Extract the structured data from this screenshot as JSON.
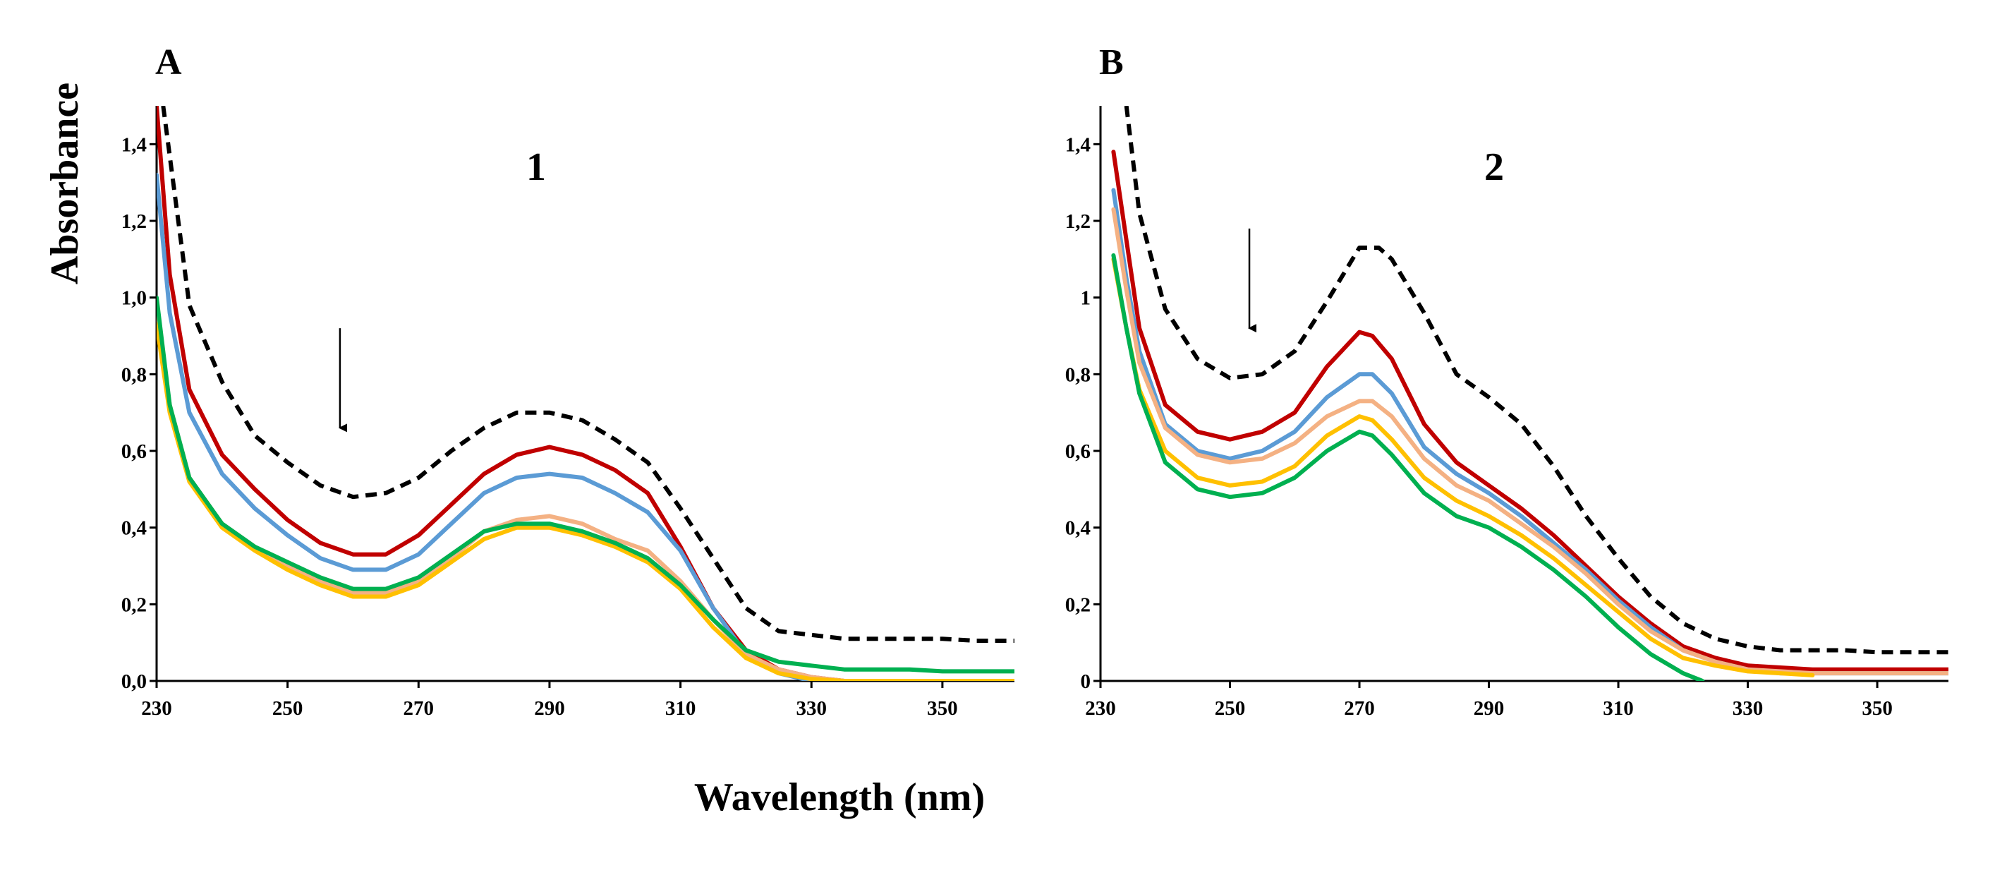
{
  "colors": {
    "dashed": "#000000",
    "red": "#c00000",
    "blue": "#5b9bd5",
    "salmon": "#f4b183",
    "yellow": "#ffc000",
    "green": "#00b050"
  },
  "xlabel": "Wavelength (nm)",
  "ylabel": "Absorbance",
  "chart_data": [
    {
      "type": "line",
      "panel": "A",
      "title": "1",
      "xlim": [
        230,
        361
      ],
      "ylim": [
        0,
        1.5
      ],
      "xticks": [
        230,
        250,
        270,
        290,
        310,
        330,
        350
      ],
      "yticks": [
        0,
        0.2,
        0.4,
        0.6,
        0.8,
        1.0,
        1.2,
        1.4
      ],
      "ytick_labels": [
        "0,0",
        "0,2",
        "0,4",
        "0,6",
        "0,8",
        "1,0",
        "1,2",
        "1,4"
      ],
      "arrow": {
        "x": 258,
        "from_y": 0.92,
        "to_y": 0.66
      },
      "series": [
        {
          "name": "dashed",
          "dash": true,
          "color_key": "dashed",
          "x": [
            231,
            235,
            240,
            245,
            250,
            255,
            260,
            265,
            270,
            275,
            280,
            285,
            290,
            295,
            300,
            305,
            310,
            315,
            320,
            325,
            330,
            335,
            340,
            345,
            350,
            355,
            361
          ],
          "y": [
            1.5,
            0.98,
            0.78,
            0.64,
            0.57,
            0.51,
            0.48,
            0.49,
            0.53,
            0.6,
            0.66,
            0.7,
            0.7,
            0.68,
            0.63,
            0.57,
            0.45,
            0.32,
            0.19,
            0.13,
            0.12,
            0.11,
            0.11,
            0.11,
            0.11,
            0.105,
            0.105
          ]
        },
        {
          "name": "red",
          "dash": false,
          "color_key": "red",
          "x": [
            230,
            232,
            235,
            240,
            245,
            250,
            255,
            260,
            265,
            270,
            275,
            280,
            285,
            290,
            295,
            300,
            305,
            310,
            315,
            320,
            325,
            330,
            335,
            340,
            345,
            350,
            355,
            361
          ],
          "y": [
            1.5,
            1.06,
            0.76,
            0.59,
            0.5,
            0.42,
            0.36,
            0.33,
            0.33,
            0.38,
            0.46,
            0.54,
            0.59,
            0.61,
            0.59,
            0.55,
            0.49,
            0.35,
            0.19,
            0.08,
            0.03,
            0.01,
            0.0,
            0.0,
            0.0,
            0.0,
            0.0,
            0.0
          ]
        },
        {
          "name": "blue",
          "dash": false,
          "color_key": "blue",
          "x": [
            230,
            232,
            235,
            240,
            245,
            250,
            255,
            260,
            265,
            270,
            275,
            280,
            285,
            290,
            295,
            300,
            305,
            310,
            315,
            320,
            325,
            330
          ],
          "y": [
            1.32,
            0.96,
            0.7,
            0.54,
            0.45,
            0.38,
            0.32,
            0.29,
            0.29,
            0.33,
            0.41,
            0.49,
            0.53,
            0.54,
            0.53,
            0.49,
            0.44,
            0.34,
            0.19,
            0.07,
            0.02,
            0.0
          ]
        },
        {
          "name": "salmon",
          "dash": false,
          "color_key": "salmon",
          "x": [
            230,
            232,
            235,
            240,
            245,
            250,
            255,
            260,
            265,
            270,
            275,
            280,
            285,
            290,
            295,
            300,
            305,
            310,
            315,
            320,
            325,
            330,
            335,
            340,
            345,
            350,
            355,
            361
          ],
          "y": [
            0.97,
            0.72,
            0.53,
            0.41,
            0.35,
            0.3,
            0.26,
            0.23,
            0.23,
            0.26,
            0.32,
            0.39,
            0.42,
            0.43,
            0.41,
            0.37,
            0.34,
            0.26,
            0.16,
            0.07,
            0.03,
            0.01,
            0.0,
            0.0,
            0.0,
            0.0,
            0.0,
            0.0
          ]
        },
        {
          "name": "yellow",
          "dash": false,
          "color_key": "yellow",
          "x": [
            230,
            232,
            235,
            240,
            245,
            250,
            255,
            260,
            265,
            270,
            275,
            280,
            285,
            290,
            295,
            300,
            305,
            310,
            315,
            320,
            325,
            330,
            335,
            340,
            345,
            350,
            355,
            361
          ],
          "y": [
            0.93,
            0.7,
            0.52,
            0.4,
            0.34,
            0.29,
            0.25,
            0.22,
            0.22,
            0.25,
            0.31,
            0.37,
            0.4,
            0.4,
            0.38,
            0.35,
            0.31,
            0.24,
            0.14,
            0.06,
            0.02,
            0.005,
            0.0,
            0.0,
            0.0,
            0.0,
            0.0,
            0.0
          ]
        },
        {
          "name": "green",
          "dash": false,
          "color_key": "green",
          "x": [
            230,
            232,
            235,
            240,
            245,
            250,
            255,
            260,
            265,
            270,
            275,
            280,
            285,
            290,
            295,
            300,
            305,
            310,
            315,
            320,
            325,
            330,
            335,
            340,
            345,
            350,
            355,
            361
          ],
          "y": [
            1.0,
            0.72,
            0.53,
            0.41,
            0.35,
            0.31,
            0.27,
            0.24,
            0.24,
            0.27,
            0.33,
            0.39,
            0.41,
            0.41,
            0.39,
            0.36,
            0.32,
            0.25,
            0.16,
            0.08,
            0.05,
            0.04,
            0.03,
            0.03,
            0.03,
            0.025,
            0.025,
            0.025
          ]
        }
      ]
    },
    {
      "type": "line",
      "panel": "B",
      "title": "2",
      "xlim": [
        230,
        361
      ],
      "ylim": [
        0,
        1.5
      ],
      "xticks": [
        230,
        250,
        270,
        290,
        310,
        330,
        350
      ],
      "yticks": [
        0,
        0.2,
        0.4,
        0.6,
        0.8,
        1.0,
        1.2,
        1.4
      ],
      "ytick_labels": [
        "0",
        "0,2",
        "0,4",
        "0,6",
        "0,8",
        "1",
        "1,2",
        "1,4"
      ],
      "arrow": {
        "x": 253,
        "from_y": 1.18,
        "to_y": 0.92
      },
      "series": [
        {
          "name": "dashed",
          "dash": true,
          "color_key": "dashed",
          "x": [
            234,
            236,
            240,
            245,
            250,
            255,
            260,
            265,
            270,
            273,
            275,
            280,
            285,
            290,
            295,
            300,
            305,
            310,
            315,
            320,
            325,
            330,
            335,
            340,
            345,
            350,
            355,
            361
          ],
          "y": [
            1.5,
            1.22,
            0.97,
            0.84,
            0.79,
            0.8,
            0.86,
            0.99,
            1.13,
            1.13,
            1.1,
            0.96,
            0.8,
            0.74,
            0.67,
            0.56,
            0.43,
            0.32,
            0.22,
            0.15,
            0.11,
            0.09,
            0.08,
            0.08,
            0.08,
            0.075,
            0.075,
            0.075
          ]
        },
        {
          "name": "red",
          "dash": false,
          "color_key": "red",
          "x": [
            232,
            234,
            236,
            240,
            245,
            250,
            255,
            260,
            265,
            270,
            272,
            275,
            280,
            285,
            290,
            295,
            300,
            305,
            310,
            315,
            320,
            325,
            330,
            335,
            340,
            345,
            350,
            355,
            361
          ],
          "y": [
            1.38,
            1.15,
            0.92,
            0.72,
            0.65,
            0.63,
            0.65,
            0.7,
            0.82,
            0.91,
            0.9,
            0.84,
            0.67,
            0.57,
            0.51,
            0.45,
            0.38,
            0.3,
            0.22,
            0.15,
            0.09,
            0.06,
            0.04,
            0.035,
            0.03,
            0.03,
            0.03,
            0.03,
            0.03
          ]
        },
        {
          "name": "blue",
          "dash": false,
          "color_key": "blue",
          "x": [
            232,
            234,
            236,
            240,
            245,
            250,
            255,
            260,
            265,
            270,
            272,
            275,
            280,
            285,
            290,
            295,
            300,
            305,
            310,
            315,
            320,
            325,
            330,
            335,
            340,
            345,
            350,
            355,
            361
          ],
          "y": [
            1.28,
            1.05,
            0.86,
            0.67,
            0.6,
            0.58,
            0.6,
            0.65,
            0.74,
            0.8,
            0.8,
            0.75,
            0.61,
            0.54,
            0.49,
            0.43,
            0.36,
            0.29,
            0.21,
            0.14,
            0.08,
            0.05,
            0.03,
            0.02,
            0.02,
            0.02,
            0.02,
            0.02,
            0.02
          ]
        },
        {
          "name": "salmon",
          "dash": false,
          "color_key": "salmon",
          "x": [
            232,
            234,
            236,
            240,
            245,
            250,
            255,
            260,
            265,
            270,
            272,
            275,
            280,
            285,
            290,
            295,
            300,
            305,
            310,
            315,
            320,
            325,
            330,
            335,
            340,
            345,
            350,
            355,
            361
          ],
          "y": [
            1.23,
            1.02,
            0.83,
            0.66,
            0.59,
            0.57,
            0.58,
            0.62,
            0.69,
            0.73,
            0.73,
            0.69,
            0.58,
            0.51,
            0.47,
            0.41,
            0.35,
            0.28,
            0.2,
            0.13,
            0.08,
            0.05,
            0.03,
            0.025,
            0.02,
            0.02,
            0.02,
            0.02,
            0.02
          ]
        },
        {
          "name": "yellow",
          "dash": false,
          "color_key": "yellow",
          "x": [
            232,
            234,
            236,
            240,
            245,
            250,
            255,
            260,
            265,
            270,
            272,
            275,
            280,
            285,
            290,
            295,
            300,
            305,
            310,
            315,
            320,
            325,
            330,
            335,
            340
          ],
          "y": [
            1.1,
            0.92,
            0.76,
            0.6,
            0.53,
            0.51,
            0.52,
            0.56,
            0.64,
            0.69,
            0.68,
            0.63,
            0.53,
            0.47,
            0.43,
            0.38,
            0.32,
            0.25,
            0.18,
            0.11,
            0.06,
            0.04,
            0.025,
            0.02,
            0.015
          ]
        },
        {
          "name": "green",
          "dash": false,
          "color_key": "green",
          "x": [
            232,
            234,
            236,
            240,
            245,
            250,
            255,
            260,
            265,
            270,
            272,
            275,
            280,
            285,
            290,
            295,
            300,
            305,
            310,
            315,
            320,
            323
          ],
          "y": [
            1.11,
            0.92,
            0.75,
            0.57,
            0.5,
            0.48,
            0.49,
            0.53,
            0.6,
            0.65,
            0.64,
            0.59,
            0.49,
            0.43,
            0.4,
            0.35,
            0.29,
            0.22,
            0.14,
            0.07,
            0.02,
            0.0
          ]
        }
      ]
    }
  ]
}
